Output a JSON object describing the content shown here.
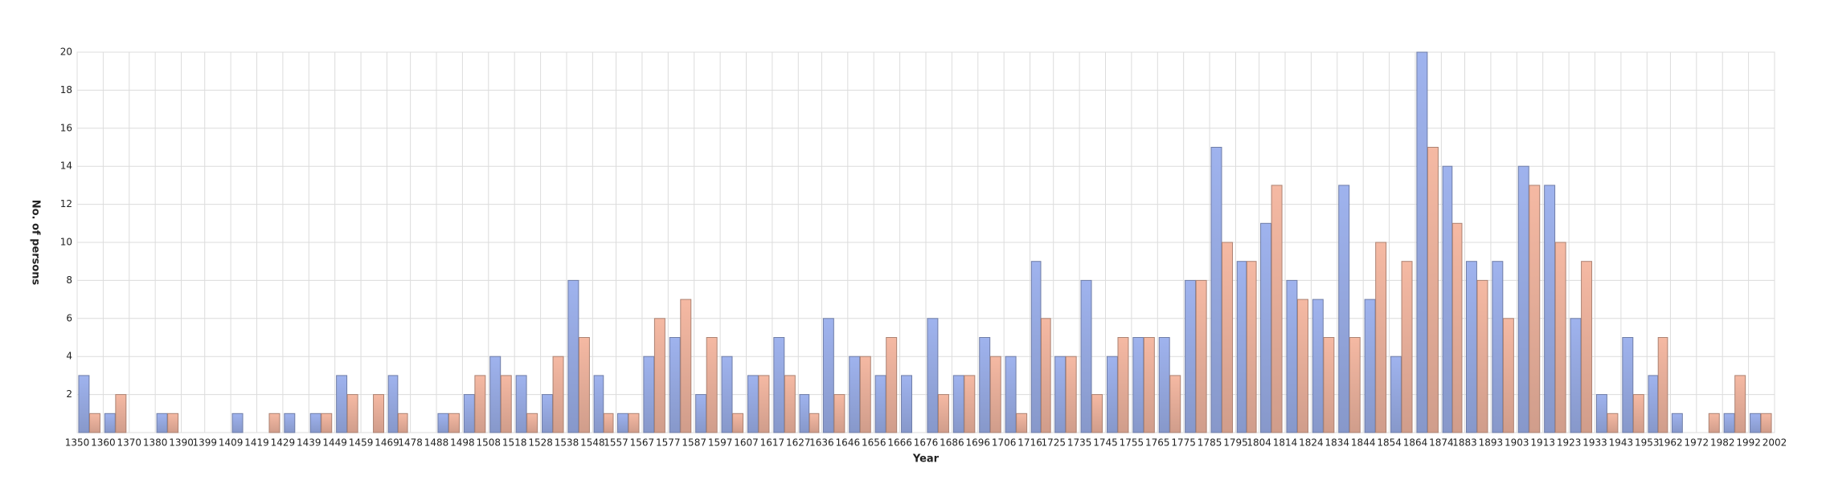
{
  "chart_data": {
    "type": "histogram",
    "x_label": "Year",
    "y_label": "No. of persons",
    "bins": [
      1350,
      1360,
      1370,
      1380,
      1390,
      1399,
      1409,
      1419,
      1429,
      1439,
      1449,
      1459,
      1469,
      1478,
      1488,
      1498,
      1508,
      1518,
      1528,
      1538,
      1548,
      1557,
      1567,
      1577,
      1587,
      1597,
      1607,
      1617,
      1627,
      1636,
      1646,
      1656,
      1666,
      1676,
      1686,
      1696,
      1706,
      1716,
      1725,
      1735,
      1745,
      1755,
      1765,
      1775,
      1785,
      1795,
      1804,
      1814,
      1824,
      1834,
      1844,
      1854,
      1864,
      1874,
      1883,
      1893,
      1903,
      1913,
      1923,
      1933,
      1943,
      1953,
      1962,
      1972,
      1982,
      1992,
      2002
    ],
    "series": [
      {
        "color": "#9fb3ee",
        "values": [
          3,
          1,
          0,
          1,
          0,
          0,
          1,
          0,
          1,
          1,
          3,
          0,
          3,
          0,
          1,
          2,
          4,
          3,
          2,
          8,
          3,
          1,
          4,
          5,
          2,
          4,
          3,
          5,
          2,
          6,
          4,
          3,
          3,
          6,
          3,
          5,
          4,
          9,
          4,
          8,
          4,
          5,
          5,
          8,
          15,
          9,
          11,
          8,
          7,
          13,
          7,
          4,
          20,
          14,
          9,
          9,
          14,
          13,
          6,
          2,
          5,
          3,
          1,
          0,
          1,
          1
        ]
      },
      {
        "color": "#f5b9a3",
        "values": [
          1,
          2,
          0,
          1,
          0,
          0,
          0,
          1,
          0,
          1,
          2,
          2,
          1,
          0,
          1,
          3,
          3,
          1,
          4,
          5,
          1,
          1,
          6,
          7,
          5,
          1,
          3,
          3,
          1,
          2,
          4,
          5,
          0,
          2,
          3,
          4,
          1,
          6,
          4,
          2,
          5,
          5,
          3,
          8,
          10,
          9,
          13,
          7,
          5,
          5,
          10,
          9,
          15,
          11,
          8,
          6,
          13,
          10,
          9,
          1,
          2,
          5,
          0,
          1,
          3,
          1
        ]
      }
    ],
    "xlim": [
      1350,
      2002
    ],
    "xticks": [
      1350,
      1360,
      1370,
      1380,
      1390,
      1399,
      1409,
      1419,
      1429,
      1439,
      1449,
      1459,
      1469,
      1478,
      1488,
      1498,
      1508,
      1518,
      1528,
      1538,
      1548,
      1557,
      1567,
      1577,
      1587,
      1597,
      1607,
      1617,
      1627,
      1636,
      1646,
      1656,
      1666,
      1676,
      1686,
      1696,
      1706,
      1716,
      1725,
      1735,
      1745,
      1755,
      1765,
      1775,
      1785,
      1795,
      1804,
      1814,
      1824,
      1834,
      1844,
      1854,
      1864,
      1874,
      1883,
      1893,
      1903,
      1913,
      1923,
      1933,
      1943,
      1953,
      1962,
      1972,
      1982,
      1992,
      2002
    ],
    "ylim": [
      0,
      20
    ],
    "yticks": [
      2,
      4,
      6,
      8,
      10,
      12,
      14,
      16,
      18,
      20
    ],
    "grid": true
  }
}
